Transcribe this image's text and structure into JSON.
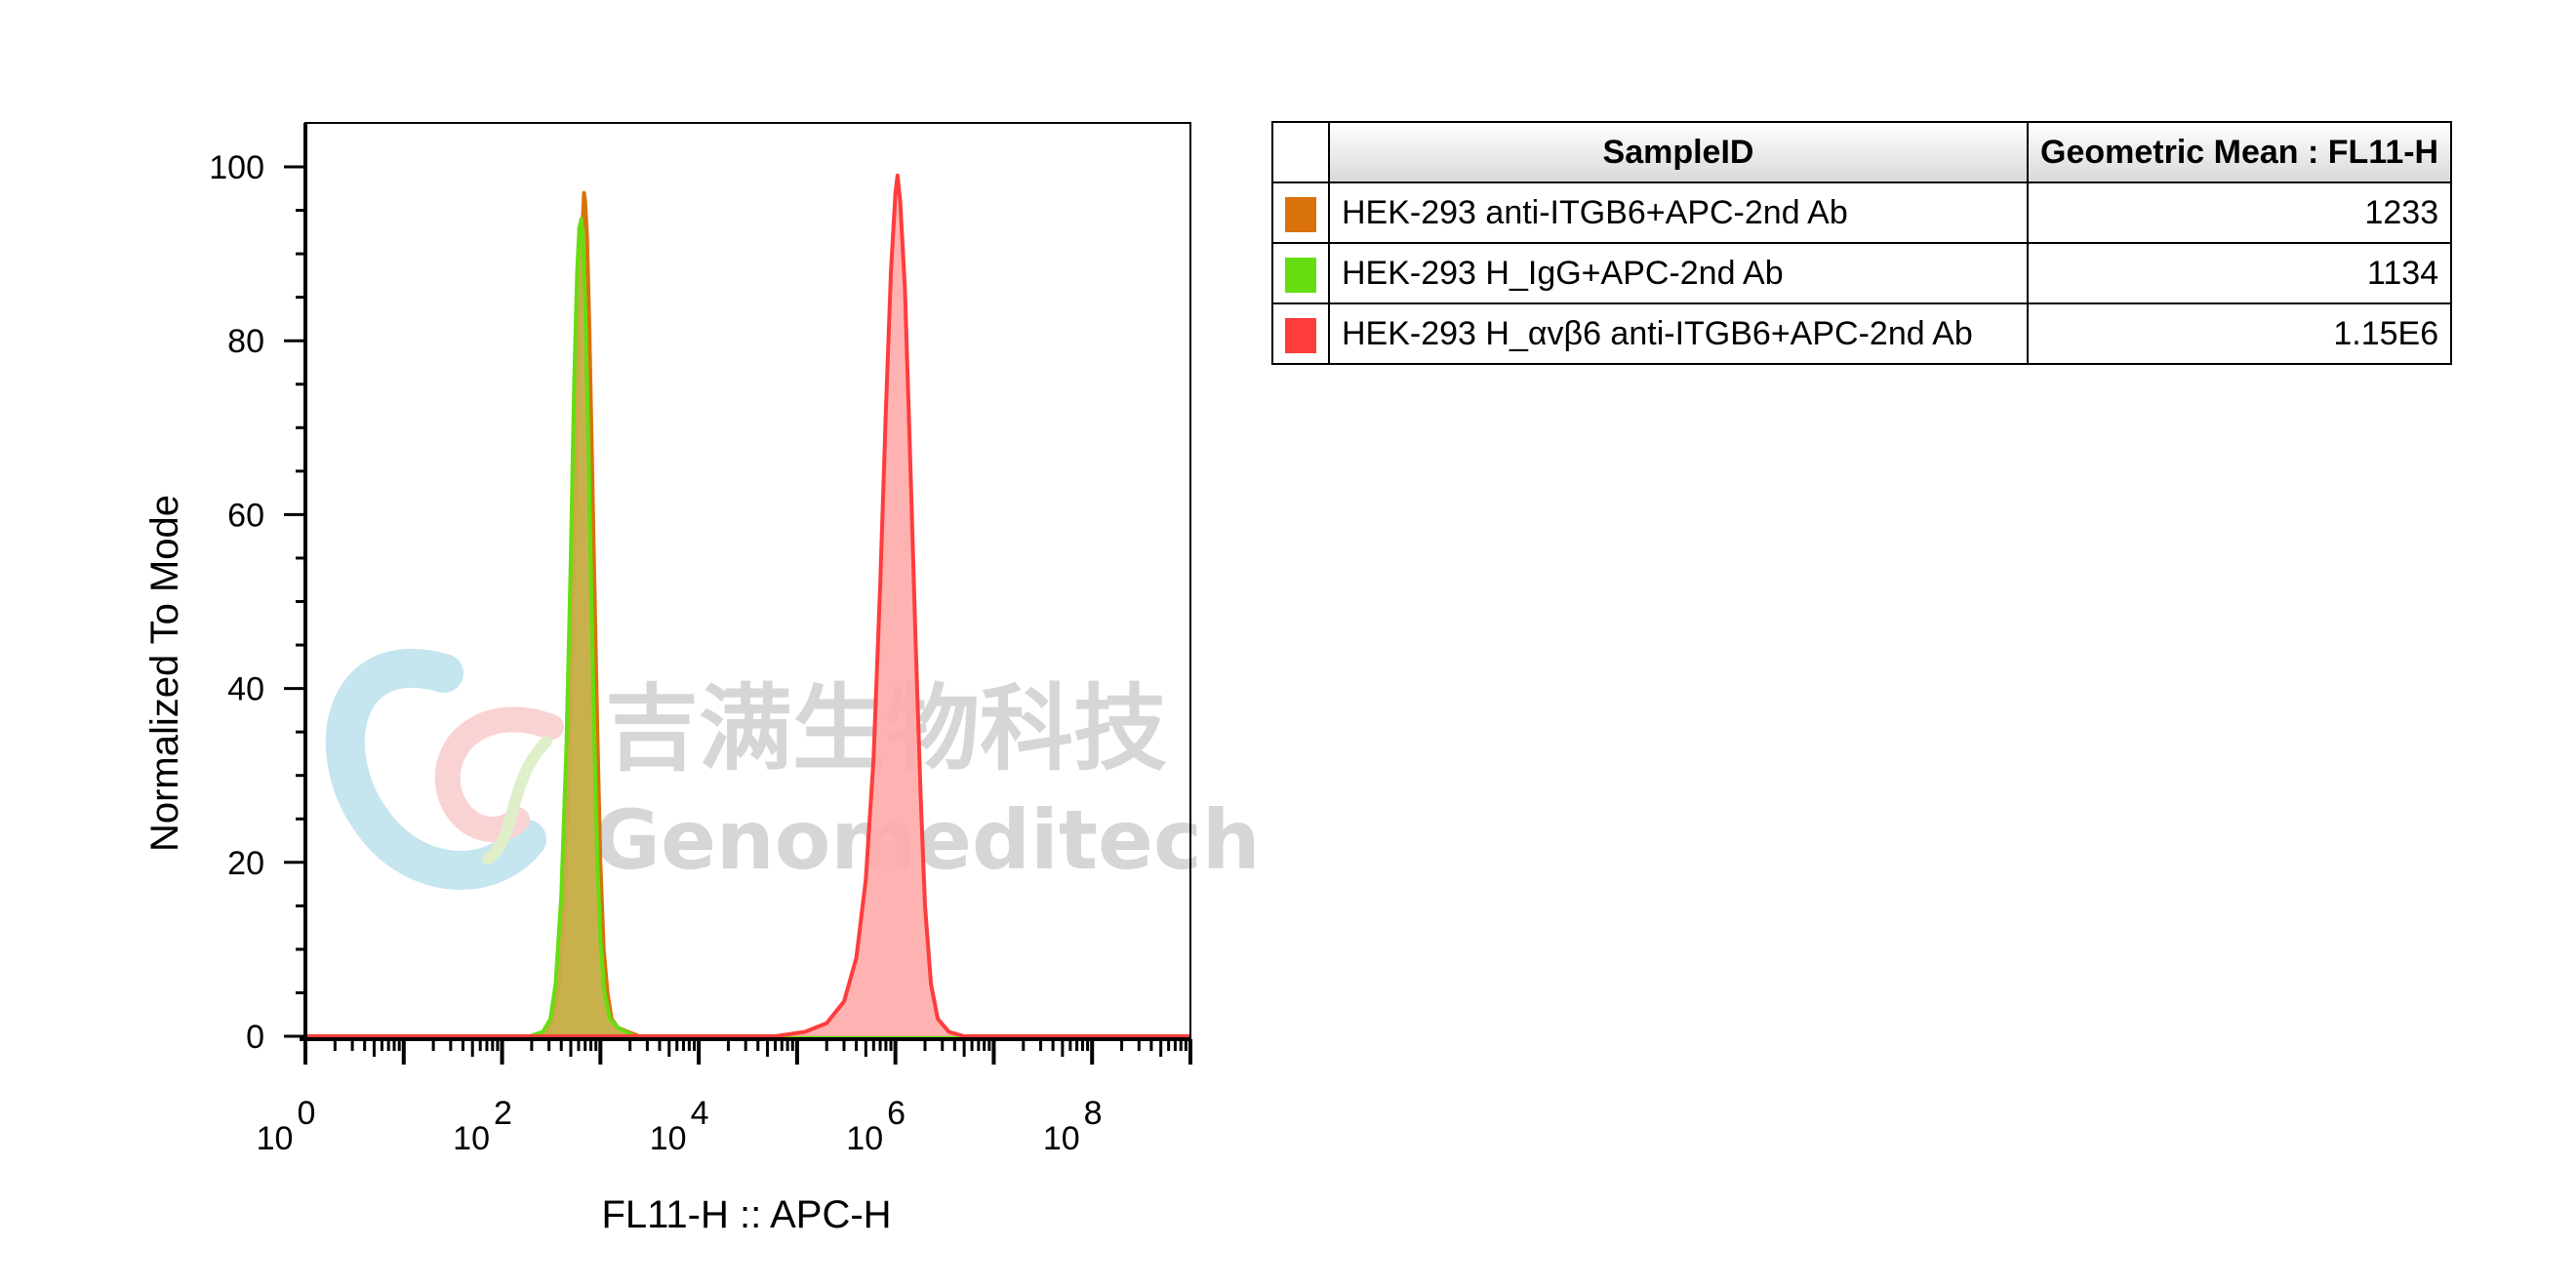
{
  "chart_data": {
    "type": "histogram",
    "xlabel": "FL11-H :: APC-H",
    "ylabel": "Normalized To Mode",
    "x_scale": "log10",
    "xlim": [
      1,
      1000000000
    ],
    "ylim": [
      0,
      100
    ],
    "x_tick_labels": [
      {
        "base": "10",
        "exp": "0"
      },
      {
        "base": "10",
        "exp": "2"
      },
      {
        "base": "10",
        "exp": "4"
      },
      {
        "base": "10",
        "exp": "6"
      },
      {
        "base": "10",
        "exp": "8"
      }
    ],
    "y_ticks": [
      "0",
      "20",
      "40",
      "60",
      "80",
      "100"
    ],
    "series": [
      {
        "name": "HEK-293 anti-ITGB6+APC-2nd Ab",
        "color": "#d9720b",
        "fill": "#c8b04a",
        "points": [
          [
            1,
            0
          ],
          [
            200,
            0
          ],
          [
            280,
            0.5
          ],
          [
            330,
            2
          ],
          [
            380,
            6
          ],
          [
            430,
            15
          ],
          [
            480,
            30
          ],
          [
            530,
            50
          ],
          [
            580,
            72
          ],
          [
            620,
            85
          ],
          [
            650,
            92
          ],
          [
            680,
            97
          ],
          [
            700,
            96
          ],
          [
            730,
            92
          ],
          [
            770,
            82
          ],
          [
            820,
            67
          ],
          [
            870,
            52
          ],
          [
            930,
            35
          ],
          [
            1000,
            20
          ],
          [
            1080,
            10
          ],
          [
            1180,
            5
          ],
          [
            1300,
            2
          ],
          [
            1500,
            1
          ],
          [
            1900,
            0.5
          ],
          [
            2500,
            0
          ],
          [
            1000000000,
            0
          ]
        ]
      },
      {
        "name": "HEK-293 H_IgG+APC-2nd Ab",
        "color": "#66dd11",
        "fill": "#c8b04a",
        "points": [
          [
            1,
            0
          ],
          [
            190,
            0
          ],
          [
            260,
            0.5
          ],
          [
            310,
            2
          ],
          [
            350,
            6
          ],
          [
            400,
            16
          ],
          [
            450,
            33
          ],
          [
            500,
            55
          ],
          [
            540,
            75
          ],
          [
            580,
            88
          ],
          [
            610,
            93
          ],
          [
            640,
            94
          ],
          [
            660,
            92
          ],
          [
            700,
            84
          ],
          [
            750,
            70
          ],
          [
            800,
            53
          ],
          [
            860,
            36
          ],
          [
            930,
            20
          ],
          [
            1000,
            11
          ],
          [
            1100,
            5
          ],
          [
            1250,
            2
          ],
          [
            1500,
            1
          ],
          [
            2200,
            0
          ],
          [
            1000000000,
            0
          ]
        ]
      },
      {
        "name": "HEK-293 H_αvβ6 anti-ITGB6+APC-2nd Ab",
        "color": "#ff3c3c",
        "fill": "#ffaaaa",
        "points": [
          [
            1,
            0
          ],
          [
            60000,
            0
          ],
          [
            120000,
            0.5
          ],
          [
            200000,
            1.5
          ],
          [
            300000,
            4
          ],
          [
            400000,
            9
          ],
          [
            500000,
            18
          ],
          [
            600000,
            32
          ],
          [
            700000,
            52
          ],
          [
            800000,
            72
          ],
          [
            900000,
            88
          ],
          [
            1000000,
            97
          ],
          [
            1050000,
            99
          ],
          [
            1120000,
            96
          ],
          [
            1250000,
            86
          ],
          [
            1400000,
            68
          ],
          [
            1600000,
            46
          ],
          [
            1800000,
            28
          ],
          [
            2000000,
            15
          ],
          [
            2300000,
            6
          ],
          [
            2700000,
            2
          ],
          [
            3500000,
            0.5
          ],
          [
            5000000,
            0
          ],
          [
            1000000000,
            0
          ]
        ]
      }
    ],
    "legend": "table, right of plot"
  },
  "table": {
    "col_sample": "SampleID",
    "col_value": "Geometric Mean : FL11-H",
    "rows": [
      {
        "color": "#d9720b",
        "sample": "HEK-293 anti-ITGB6+APC-2nd Ab",
        "value": "1233"
      },
      {
        "color": "#66dd11",
        "sample": "HEK-293 H_IgG+APC-2nd Ab",
        "value": "1134"
      },
      {
        "color": "#ff3c3c",
        "sample": "HEK-293 H_αvβ6 anti-ITGB6+APC-2nd Ab",
        "value": "1.15E6"
      }
    ]
  },
  "watermark": {
    "chinese": "吉满生物科技",
    "english": "Genomeditech",
    "logo": "genomeditech-logo"
  }
}
